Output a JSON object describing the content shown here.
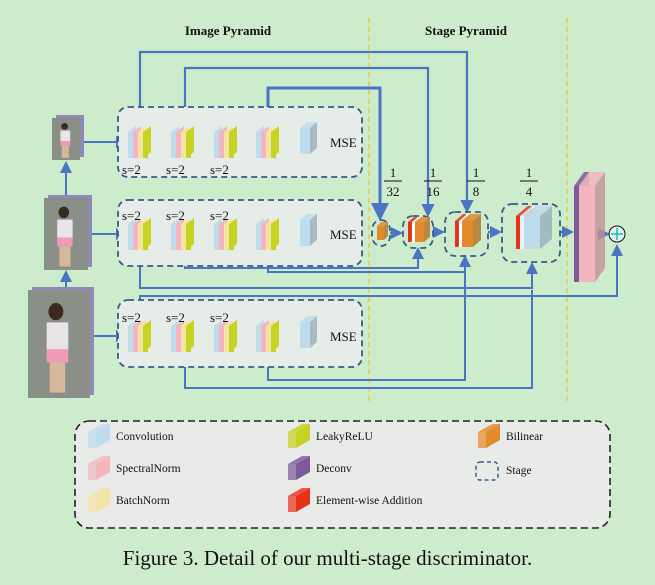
{
  "headers": {
    "image_pyramid": "Image Pyramid",
    "stage_pyramid": "Stage Pyramid"
  },
  "rows": [
    {
      "strides": [
        "s=2",
        "s=2",
        "s=2"
      ],
      "output": "MSE"
    },
    {
      "strides": [
        "s=2",
        "s=2",
        "s=2"
      ],
      "output": "MSE"
    },
    {
      "strides": [
        "s=2",
        "s=2",
        "s=2"
      ],
      "output": "MSE"
    }
  ],
  "fractions": [
    {
      "num": "1",
      "den": "32"
    },
    {
      "num": "1",
      "den": "16"
    },
    {
      "num": "1",
      "den": "8"
    },
    {
      "num": "1",
      "den": "4"
    }
  ],
  "legend": [
    {
      "label": "Convolution",
      "color": "#bfdcec"
    },
    {
      "label": "SpectralNorm",
      "color": "#f4b5bf"
    },
    {
      "label": "BatchNorm",
      "color": "#f3e4a6"
    },
    {
      "label": "LeakyReLU",
      "color": "#c6d322"
    },
    {
      "label": "Deconv",
      "color": "#7d5a9c"
    },
    {
      "label": "Element-wise Addition",
      "color": "#e8301a"
    },
    {
      "label": "Bilinear",
      "color": "#e38a2c"
    },
    {
      "label": "Stage",
      "color": "#3a5a8c"
    }
  ],
  "colors": {
    "background": "#cdeccb",
    "arrow": "#4a74c4",
    "divider": "#f0c020",
    "stage_border": "#3a5a8c"
  },
  "caption": "Figure 3. Detail of our multi-stage discriminator."
}
